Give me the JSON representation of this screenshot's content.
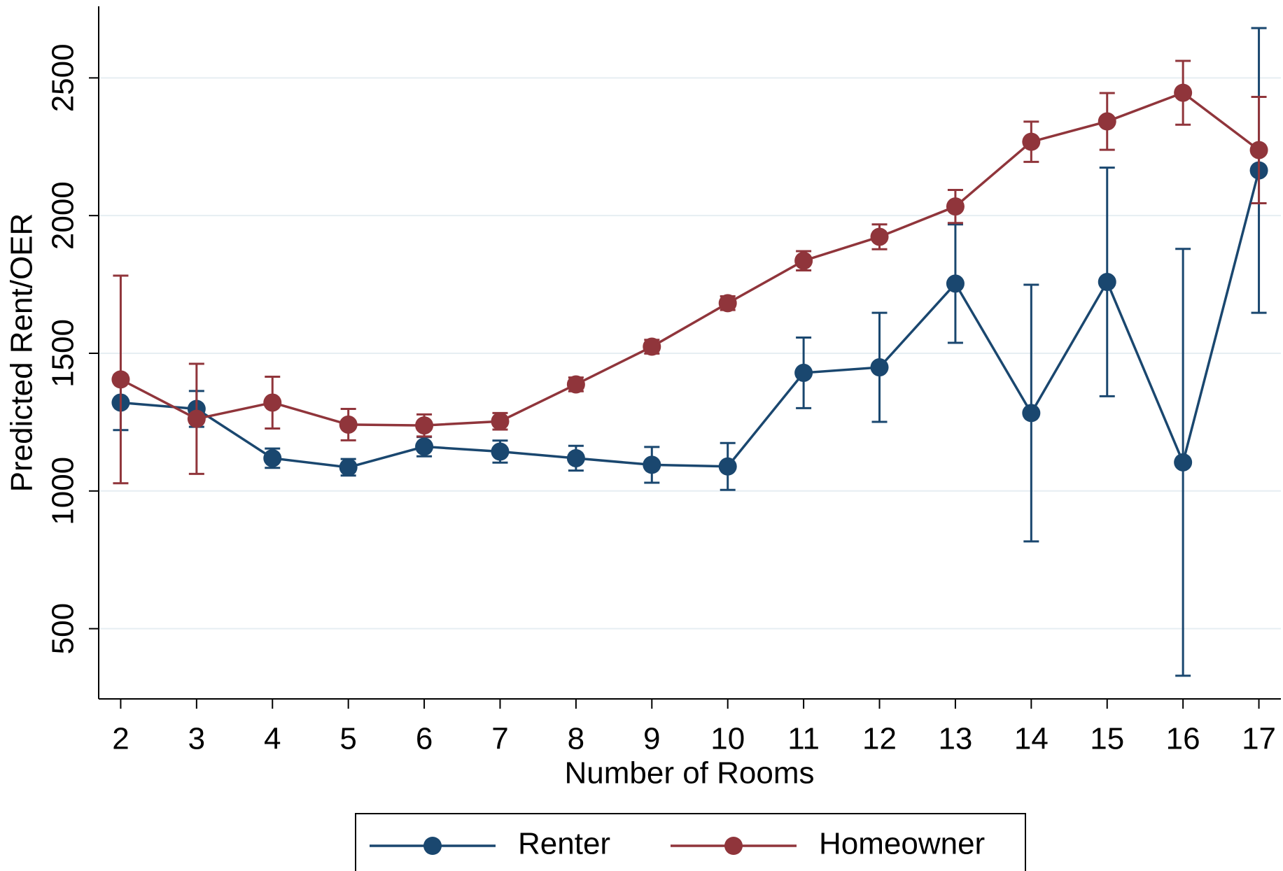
{
  "chart_data": {
    "type": "line",
    "x_label": "Number of Rooms",
    "y_label": "Predicted Rent/OER",
    "x": [
      2,
      3,
      4,
      5,
      6,
      7,
      8,
      9,
      10,
      11,
      12,
      13,
      14,
      15,
      16,
      17
    ],
    "xlim": [
      1.71,
      17.29
    ],
    "xticks": [
      2,
      3,
      4,
      5,
      6,
      7,
      8,
      9,
      10,
      11,
      12,
      13,
      14,
      15,
      16,
      17
    ],
    "ylim": [
      245,
      2760
    ],
    "yticks": [
      500,
      1000,
      1500,
      2000,
      2500
    ],
    "grid": true,
    "legend": "bottom",
    "series": [
      {
        "name": "Renter",
        "color": "#1a476f",
        "values": [
          1321,
          1298,
          1119,
          1086,
          1161,
          1143,
          1119,
          1095,
          1089,
          1429,
          1449,
          1753,
          1283,
          1759,
          1104,
          2164
        ],
        "errors": [
          100,
          65,
          35,
          30,
          35,
          40,
          45,
          65,
          85,
          128,
          198,
          215,
          466,
          415,
          775,
          517
        ]
      },
      {
        "name": "Homeowner",
        "color": "#90353b",
        "values": [
          1405,
          1262,
          1321,
          1241,
          1238,
          1253,
          1387,
          1524,
          1682,
          1836,
          1923,
          2033,
          2268,
          2342,
          2446,
          2238
        ],
        "errors": [
          377,
          200,
          94,
          57,
          40,
          30,
          25,
          25,
          25,
          35,
          45,
          60,
          73,
          103,
          116,
          193
        ]
      }
    ]
  }
}
